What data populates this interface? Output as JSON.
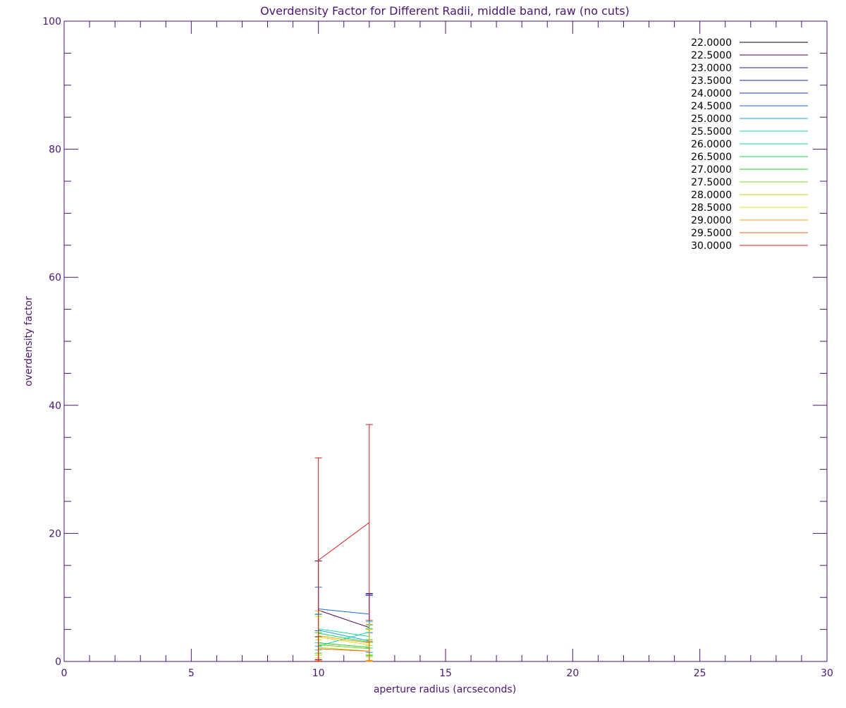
{
  "colors": {
    "axis": "#4a1670",
    "text": "#4a1670",
    "legend_text": "#000000"
  },
  "chart_data": {
    "type": "line",
    "title": "Overdensity Factor for Different Radii, middle band, raw (no cuts)",
    "xlabel": "aperture radius (arcseconds)",
    "ylabel": "overdensity factor",
    "xlim": [
      0,
      30
    ],
    "ylim": [
      0,
      100
    ],
    "x_major_ticks": [
      0,
      5,
      10,
      15,
      20,
      25,
      30
    ],
    "x_tick_labels": [
      "0",
      "5",
      "10",
      "15",
      "20",
      "25",
      "30"
    ],
    "x_minor_step": 1,
    "y_major_ticks": [
      0,
      20,
      40,
      60,
      80,
      100
    ],
    "y_tick_labels": [
      "0",
      "20",
      "40",
      "60",
      "80",
      "100"
    ],
    "y_minor_step": 5,
    "grid": false,
    "legend_position": "top-right",
    "x": [
      10,
      12
    ],
    "series": [
      {
        "name": "22.0000",
        "color": "#000000",
        "values": [
          null,
          null
        ],
        "err": [
          null,
          null
        ]
      },
      {
        "name": "22.5000",
        "color": "#4a0050",
        "values": [
          8.0,
          5.3
        ],
        "err": [
          7.7,
          5.3
        ]
      },
      {
        "name": "23.0000",
        "color": "#3a0a90",
        "values": [
          null,
          null
        ],
        "err": [
          null,
          null
        ]
      },
      {
        "name": "23.5000",
        "color": "#2020b0",
        "values": [
          null,
          null
        ],
        "err": [
          null,
          null
        ]
      },
      {
        "name": "24.0000",
        "color": "#1a3ac8",
        "values": [
          null,
          10.4
        ],
        "err": [
          null,
          0.1
        ]
      },
      {
        "name": "24.5000",
        "color": "#1a68d0",
        "values": [
          8.2,
          7.4
        ],
        "err": [
          3.4,
          2.9
        ]
      },
      {
        "name": "25.0000",
        "color": "#18a0d8",
        "values": [
          4.9,
          3.2
        ],
        "err": [
          2.5,
          1.8
        ]
      },
      {
        "name": "25.5000",
        "color": "#18d0c0",
        "values": [
          2.4,
          4.6
        ],
        "err": [
          1.4,
          1.6
        ]
      },
      {
        "name": "26.0000",
        "color": "#18d890",
        "values": [
          5.1,
          3.9
        ],
        "err": [
          2.2,
          1.8
        ]
      },
      {
        "name": "26.5000",
        "color": "#18d850",
        "values": [
          4.4,
          3.0
        ],
        "err": [
          2.6,
          2.1
        ]
      },
      {
        "name": "27.0000",
        "color": "#28d018",
        "values": [
          2.9,
          2.2
        ],
        "err": [
          1.6,
          1.2
        ]
      },
      {
        "name": "27.5000",
        "color": "#70d818",
        "values": [
          2.6,
          2.0
        ],
        "err": [
          1.3,
          1.0
        ]
      },
      {
        "name": "28.0000",
        "color": "#b0e018",
        "values": [
          2.2,
          1.6
        ],
        "err": [
          1.2,
          0.9
        ]
      },
      {
        "name": "28.5000",
        "color": "#e8e018",
        "values": [
          3.8,
          2.6
        ],
        "err": [
          3.2,
          2.4
        ]
      },
      {
        "name": "29.0000",
        "color": "#f0a018",
        "values": [
          4.0,
          2.9
        ],
        "err": [
          3.9,
          2.9
        ]
      },
      {
        "name": "29.5000",
        "color": "#f06018",
        "values": [
          2.0,
          1.6
        ],
        "err": [
          1.9,
          1.5
        ]
      },
      {
        "name": "30.0000",
        "color": "#e01818",
        "values": [
          15.8,
          21.7
        ],
        "err": [
          16.0,
          15.3
        ]
      }
    ]
  }
}
